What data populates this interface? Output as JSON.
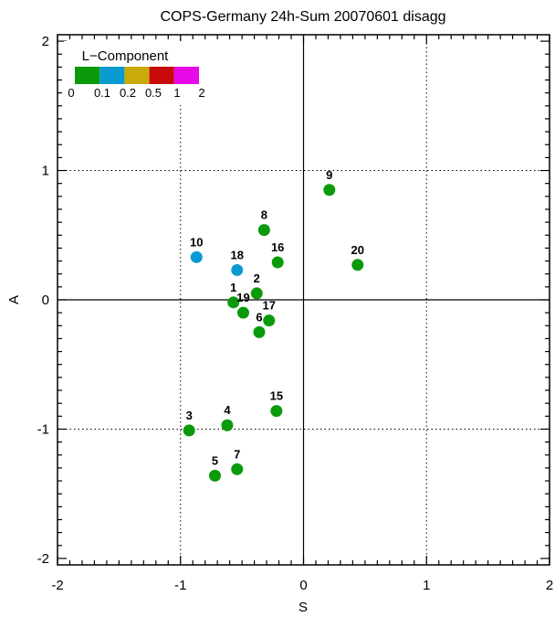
{
  "chart_data": {
    "type": "scatter",
    "title": "COPS-Germany  24h-Sum 20070601  disagg",
    "xlabel": "S",
    "ylabel": "A",
    "xlim": [
      -2,
      2
    ],
    "ylim": [
      -2.05,
      2.05
    ],
    "x_ticks": [
      -2,
      -1,
      0,
      1,
      2
    ],
    "y_ticks": [
      -2,
      -1,
      0,
      1,
      2
    ],
    "x_tick_labels": [
      "-2",
      "-1",
      "0",
      "1",
      "2"
    ],
    "y_tick_labels": [
      "-2",
      "-1",
      "0",
      "1",
      "2"
    ],
    "grid": "dotted at ±1",
    "zero_lines": true,
    "legend": {
      "title": "L−Component",
      "placement": "top-left",
      "bins": [
        {
          "color": "#0a9a0a"
        },
        {
          "color": "#0a9ad2"
        },
        {
          "color": "#c8aa0a"
        },
        {
          "color": "#c80a0a"
        },
        {
          "color": "#e60ae6"
        }
      ],
      "tick_labels": [
        "0",
        "0.1",
        "0.2",
        "0.5",
        "1",
        "2"
      ]
    },
    "points": [
      {
        "label": "1",
        "x": -0.57,
        "y": -0.02,
        "color": "#0a9a0a"
      },
      {
        "label": "2",
        "x": -0.38,
        "y": 0.05,
        "color": "#0a9a0a"
      },
      {
        "label": "3",
        "x": -0.93,
        "y": -1.01,
        "color": "#0a9a0a"
      },
      {
        "label": "4",
        "x": -0.62,
        "y": -0.97,
        "color": "#0a9a0a"
      },
      {
        "label": "5",
        "x": -0.72,
        "y": -1.36,
        "color": "#0a9a0a"
      },
      {
        "label": "6",
        "x": -0.36,
        "y": -0.25,
        "color": "#0a9a0a"
      },
      {
        "label": "7",
        "x": -0.54,
        "y": -1.31,
        "color": "#0a9a0a"
      },
      {
        "label": "8",
        "x": -0.32,
        "y": 0.54,
        "color": "#0a9a0a"
      },
      {
        "label": "9",
        "x": 0.21,
        "y": 0.85,
        "color": "#0a9a0a"
      },
      {
        "label": "10",
        "x": -0.87,
        "y": 0.33,
        "color": "#0a9ad2"
      },
      {
        "label": "15",
        "x": -0.22,
        "y": -0.86,
        "color": "#0a9a0a"
      },
      {
        "label": "16",
        "x": -0.21,
        "y": 0.29,
        "color": "#0a9a0a"
      },
      {
        "label": "17",
        "x": -0.28,
        "y": -0.16,
        "color": "#0a9a0a"
      },
      {
        "label": "18",
        "x": -0.54,
        "y": 0.23,
        "color": "#0a9ad2"
      },
      {
        "label": "19",
        "x": -0.49,
        "y": -0.1,
        "color": "#0a9a0a"
      },
      {
        "label": "20",
        "x": 0.44,
        "y": 0.27,
        "color": "#0a9a0a"
      }
    ]
  }
}
